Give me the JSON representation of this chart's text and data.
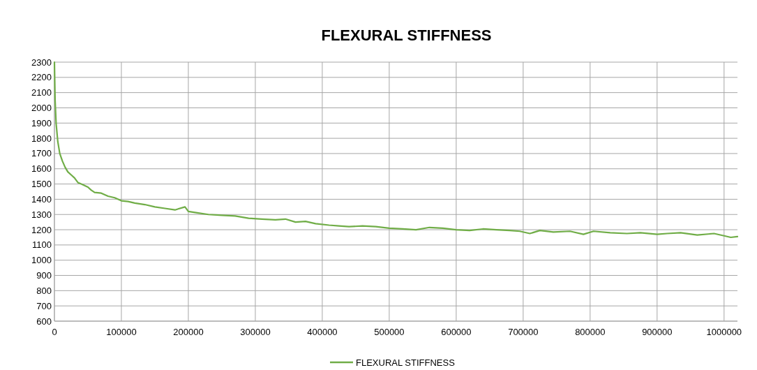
{
  "chart_data": {
    "type": "line",
    "title": "FLEXURAL STIFFNESS",
    "x": [
      0,
      1000,
      2500,
      5000,
      8000,
      12000,
      16000,
      20000,
      25000,
      30000,
      35000,
      40000,
      45000,
      50000,
      55000,
      60000,
      70000,
      80000,
      90000,
      100000,
      110000,
      120000,
      135000,
      150000,
      165000,
      180000,
      195000,
      200000,
      215000,
      230000,
      250000,
      270000,
      290000,
      310000,
      330000,
      345000,
      360000,
      375000,
      390000,
      410000,
      425000,
      440000,
      460000,
      480000,
      500000,
      520000,
      540000,
      560000,
      580000,
      600000,
      620000,
      640000,
      660000,
      680000,
      695000,
      710000,
      725000,
      745000,
      770000,
      790000,
      805000,
      830000,
      855000,
      875000,
      900000,
      915000,
      935000,
      960000,
      985000,
      1000000,
      1010000,
      1020000
    ],
    "series": [
      {
        "name": "FLEXURAL STIFFNESS",
        "color": "#70ad47",
        "values": [
          2300,
          2050,
          1900,
          1780,
          1700,
          1650,
          1610,
          1580,
          1560,
          1540,
          1510,
          1500,
          1490,
          1480,
          1460,
          1445,
          1440,
          1420,
          1410,
          1390,
          1385,
          1375,
          1365,
          1350,
          1340,
          1330,
          1350,
          1320,
          1310,
          1300,
          1295,
          1290,
          1275,
          1270,
          1265,
          1270,
          1250,
          1255,
          1240,
          1230,
          1225,
          1220,
          1225,
          1220,
          1210,
          1205,
          1200,
          1215,
          1210,
          1200,
          1195,
          1205,
          1200,
          1195,
          1190,
          1175,
          1195,
          1185,
          1190,
          1170,
          1190,
          1180,
          1175,
          1180,
          1170,
          1175,
          1180,
          1165,
          1175,
          1160,
          1150,
          1155
        ]
      }
    ],
    "xlim": [
      0,
      1020000
    ],
    "ylim": [
      600,
      2300
    ],
    "xticks": [
      0,
      100000,
      200000,
      300000,
      400000,
      500000,
      600000,
      700000,
      800000,
      900000,
      1000000
    ],
    "yticks": [
      600,
      700,
      800,
      900,
      1000,
      1100,
      1200,
      1300,
      1400,
      1500,
      1600,
      1700,
      1800,
      1900,
      2000,
      2100,
      2200,
      2300
    ],
    "grid": true,
    "legend": "bottom",
    "marker": "none",
    "line_style": "solid"
  }
}
